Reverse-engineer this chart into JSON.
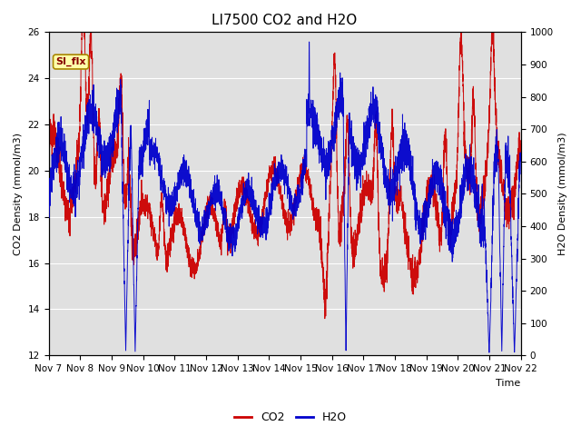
{
  "title": "LI7500 CO2 and H2O",
  "xlabel": "Time",
  "ylabel_left": "CO2 Density (mmol/m3)",
  "ylabel_right": "H2O Density (mmol/m3)",
  "ylim_left": [
    12,
    26
  ],
  "ylim_right": [
    0,
    1000
  ],
  "yticks_left": [
    12,
    14,
    16,
    18,
    20,
    22,
    24,
    26
  ],
  "yticks_right": [
    0,
    100,
    200,
    300,
    400,
    500,
    600,
    700,
    800,
    900,
    1000
  ],
  "xtick_labels": [
    "Nov 7",
    "Nov 8",
    "Nov 9",
    "Nov 10",
    "Nov 11",
    "Nov 12",
    "Nov 13",
    "Nov 14",
    "Nov 15",
    "Nov 16",
    "Nov 17",
    "Nov 18",
    "Nov 19",
    "Nov 20",
    "Nov 21",
    "Nov 22"
  ],
  "co2_color": "#cc0000",
  "h2o_color": "#0000cc",
  "bg_color": "#ffffff",
  "plot_bg_color": "#e0e0e0",
  "grid_color": "#ffffff",
  "annotation_text": "SI_flx",
  "annotation_bg": "#ffffaa",
  "annotation_border": "#aa8800",
  "annotation_text_color": "#880000",
  "legend_co2": "CO2",
  "legend_h2o": "H2O",
  "title_fontsize": 11,
  "axis_fontsize": 8,
  "tick_fontsize": 7.5
}
